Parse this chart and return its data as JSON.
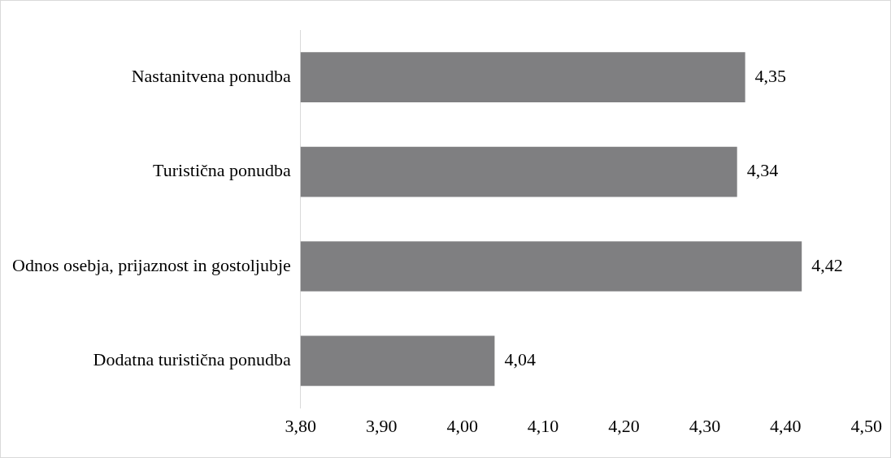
{
  "chart_data": {
    "type": "bar",
    "orientation": "horizontal",
    "categories": [
      "Nastanitvena ponudba",
      "Turistična ponudba",
      "Odnos osebja, prijaznost in gostoljubje",
      "Dodatna turistična ponudba"
    ],
    "values": [
      4.35,
      4.34,
      4.42,
      4.04
    ],
    "value_labels": [
      "4,35",
      "4,34",
      "4,42",
      "4,04"
    ],
    "color": "#7f7f81",
    "xlim": [
      3.8,
      4.5
    ],
    "xticks": [
      {
        "value": 3.8,
        "label": "3,80"
      },
      {
        "value": 3.9,
        "label": "3,90"
      },
      {
        "value": 4.0,
        "label": "4,00"
      },
      {
        "value": 4.1,
        "label": "4,10"
      },
      {
        "value": 4.2,
        "label": "4,20"
      },
      {
        "value": 4.3,
        "label": "4,30"
      },
      {
        "value": 4.4,
        "label": "4,40"
      },
      {
        "value": 4.5,
        "label": "4,50"
      }
    ]
  }
}
